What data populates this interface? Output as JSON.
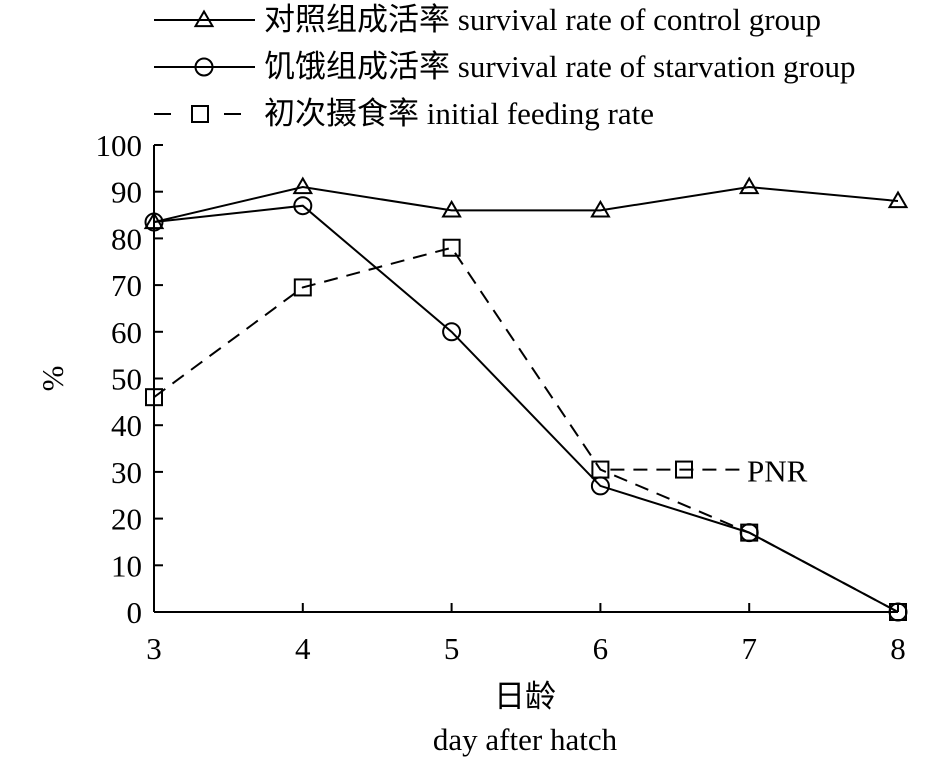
{
  "chart_data": {
    "type": "line",
    "title": "",
    "x": [
      3,
      4,
      5,
      6,
      7,
      8
    ],
    "xlim": [
      3,
      8
    ],
    "ylim": [
      0,
      100
    ],
    "yticks": [
      0,
      10,
      20,
      30,
      40,
      50,
      60,
      70,
      80,
      90,
      100
    ],
    "xticks": [
      3,
      4,
      5,
      6,
      7,
      8
    ],
    "xlabel_zh": "日龄",
    "xlabel_en": "day after hatch",
    "ylabel": "%",
    "grid": false,
    "legend_position": "top",
    "series": [
      {
        "name": "对照组成活率 survival rate of control group",
        "marker": "triangle",
        "dash": "solid",
        "x": [
          3,
          4,
          5,
          6,
          7,
          8
        ],
        "values": [
          83.5,
          91,
          86,
          86,
          91,
          88
        ]
      },
      {
        "name": "饥饿组成活率 survival rate of starvation group",
        "marker": "circle",
        "dash": "solid",
        "x": [
          3,
          4,
          5,
          6,
          7,
          8
        ],
        "values": [
          83.5,
          87,
          60,
          27,
          17,
          0
        ]
      },
      {
        "name": "初次摄食率 initial feeding rate",
        "marker": "square",
        "dash": "dashed",
        "x": [
          3,
          4,
          5,
          6,
          7,
          8
        ],
        "values": [
          46,
          69.5,
          78,
          30.5,
          17,
          0
        ]
      }
    ],
    "annotations": [
      {
        "text": "PNR",
        "x": 6,
        "y": 30.5
      }
    ]
  }
}
